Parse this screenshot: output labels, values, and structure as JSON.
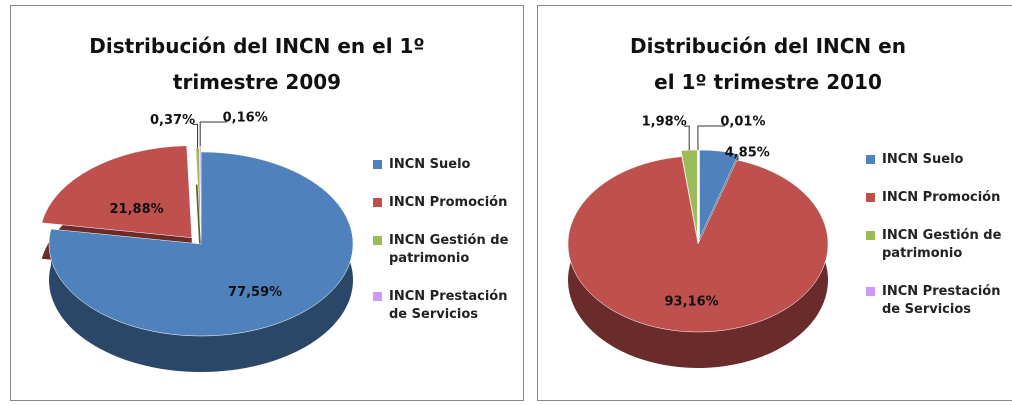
{
  "chart_data": [
    {
      "type": "pie",
      "title": "Distribución del INCN en el 1º trimestre 2009",
      "categories": [
        "INCN Suelo",
        "INCN Promoción",
        "INCN Gestión de patrimonio",
        "INCN Prestación de Servicios"
      ],
      "values": [
        77.59,
        21.88,
        0.37,
        0.16
      ],
      "value_labels": [
        "77,59%",
        "21,88%",
        "0,37%",
        "0,16%"
      ],
      "colors": [
        "#4f81bd",
        "#c0504d",
        "#9bbb59",
        "#cc99ff"
      ],
      "legend": "right"
    },
    {
      "type": "pie",
      "title": "Distribución del INCN en el 1º trimestre 2010",
      "categories": [
        "INCN Suelo",
        "INCN Promoción",
        "INCN Gestión de patrimonio",
        "INCN Prestación de Servicios"
      ],
      "values": [
        4.85,
        93.16,
        1.98,
        0.01
      ],
      "value_labels": [
        "4,85%",
        "93,16%",
        "1,98%",
        "0,01%"
      ],
      "colors": [
        "#4f81bd",
        "#c0504d",
        "#9bbb59",
        "#cc99ff"
      ],
      "legend": "right"
    }
  ]
}
